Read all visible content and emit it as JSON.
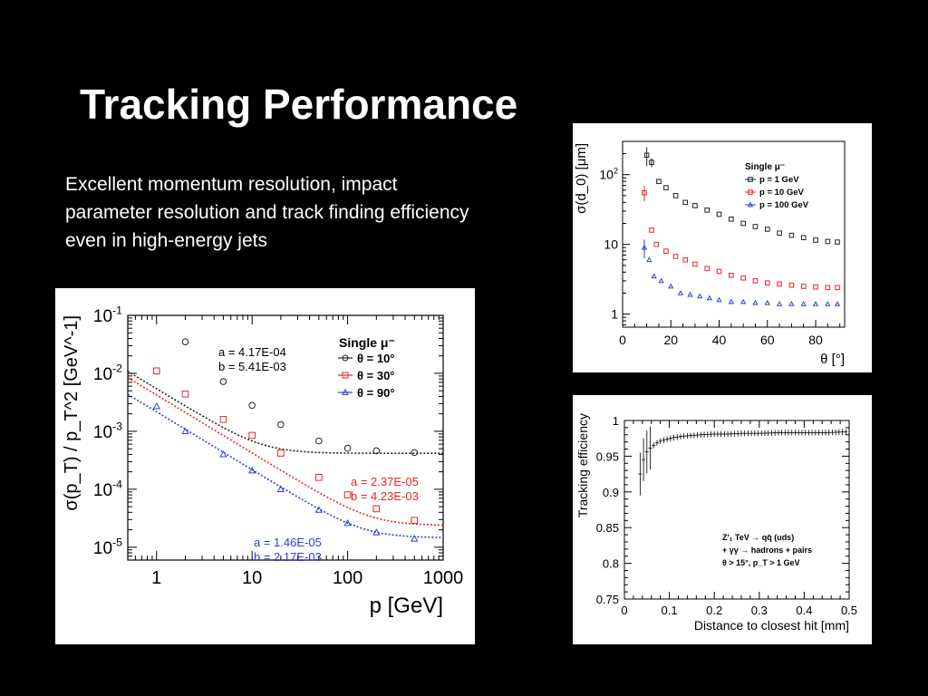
{
  "slide": {
    "title": "Tracking Performance",
    "body": "Excellent momentum resolution, impact parameter resolution and track finding efficiency even in high-energy jets"
  },
  "chart_data": [
    {
      "id": "momentum",
      "type": "scatter",
      "log_x": true,
      "log_y": true,
      "xlim": [
        0.5,
        1000
      ],
      "ylim": [
        6e-06,
        0.1
      ],
      "xlabel": "p [GeV]",
      "ylabel": "σ(p_T) / p_T^2 [GeV^-1]",
      "x_ticks": [
        {
          "v": 1,
          "label": "1"
        },
        {
          "v": 10,
          "label": "10"
        },
        {
          "v": 100,
          "label": "100"
        },
        {
          "v": 1000,
          "label": "1000"
        }
      ],
      "y_ticks": [
        {
          "v": 0.1,
          "base": "10",
          "exp": "-1"
        },
        {
          "v": 0.01,
          "base": "10",
          "exp": "-2"
        },
        {
          "v": 0.001,
          "base": "10",
          "exp": "-3"
        },
        {
          "v": 0.0001,
          "base": "10",
          "exp": "-4"
        },
        {
          "v": 1e-05,
          "base": "10",
          "exp": "-5"
        }
      ],
      "legend_title": "Single μ⁻",
      "legend_position": "top-right",
      "series": [
        {
          "name": "θ = 10°",
          "color": "#222222",
          "marker": "circle",
          "x": [
            2,
            5,
            10,
            20,
            50,
            100,
            200,
            500
          ],
          "y": [
            0.035,
            0.0072,
            0.0028,
            0.0013,
            0.00068,
            0.00051,
            0.00046,
            0.00043
          ],
          "fit": {
            "a": 0.000417,
            "b": 0.00541
          },
          "annotation": [
            "a = 4.17E-04",
            "b = 5.41E-03"
          ]
        },
        {
          "name": "θ = 30°",
          "color": "#e8262a",
          "marker": "square",
          "x": [
            1,
            2,
            5,
            10,
            20,
            50,
            100,
            200,
            500
          ],
          "y": [
            0.011,
            0.0044,
            0.0016,
            0.00085,
            0.00042,
            0.00016,
            8e-05,
            4.6e-05,
            2.9e-05
          ],
          "fit": {
            "a": 2.37e-05,
            "b": 0.00423
          },
          "annotation": [
            "a = 2.37E-05",
            "b = 4.23E-03"
          ]
        },
        {
          "name": "θ = 90°",
          "color": "#2b3fd6",
          "marker": "triangle",
          "x": [
            1,
            2,
            5,
            10,
            20,
            50,
            100,
            200,
            500
          ],
          "y": [
            0.0027,
            0.001,
            0.0004,
            0.00021,
            0.0001,
            4.4e-05,
            2.6e-05,
            1.8e-05,
            1.4e-05
          ],
          "fit": {
            "a": 1.46e-05,
            "b": 0.00217
          },
          "annotation": [
            "a = 1.46E-05",
            "b = 2.17E-03"
          ]
        }
      ]
    },
    {
      "id": "impact",
      "type": "scatter",
      "log_y": true,
      "xlim": [
        0,
        92
      ],
      "ylim": [
        0.65,
        300
      ],
      "xlabel": "θ [°]",
      "ylabel": "σ(d_0) [μm]",
      "x_ticks": [
        {
          "v": 0,
          "label": "0"
        },
        {
          "v": 20,
          "label": "20"
        },
        {
          "v": 40,
          "label": "40"
        },
        {
          "v": 60,
          "label": "60"
        },
        {
          "v": 80,
          "label": "80"
        }
      ],
      "y_ticks": [
        {
          "v": 100,
          "base": "10",
          "exp": "2"
        },
        {
          "v": 10,
          "base": "10",
          "exp": ""
        },
        {
          "v": 1,
          "base": "1",
          "exp": ""
        }
      ],
      "legend_title": "Single μ⁻",
      "legend_position": "top-right",
      "series": [
        {
          "name": "p = 1 GeV",
          "color": "#222222",
          "marker": "square",
          "x": [
            10,
            12,
            15,
            18,
            22,
            26,
            30,
            35,
            40,
            45,
            50,
            55,
            60,
            65,
            70,
            75,
            80,
            85,
            89
          ],
          "y": [
            190,
            150,
            80,
            65,
            50,
            40,
            36,
            31,
            27,
            23,
            20,
            18,
            16.5,
            14.5,
            13.5,
            12.5,
            11.5,
            11,
            10.8
          ],
          "y_err": [
            0.3,
            0.15,
            0,
            0,
            0,
            0,
            0,
            0,
            0,
            0,
            0,
            0,
            0,
            0,
            0,
            0,
            0,
            0,
            0
          ]
        },
        {
          "name": "p = 10 GeV",
          "color": "#e8262a",
          "marker": "square",
          "x": [
            9,
            12,
            14,
            18,
            22,
            26,
            30,
            35,
            40,
            45,
            50,
            55,
            60,
            65,
            70,
            75,
            80,
            85,
            89
          ],
          "y": [
            55,
            16,
            10,
            8,
            6.7,
            6,
            5.2,
            4.5,
            4.1,
            3.6,
            3.3,
            3,
            2.8,
            2.7,
            2.6,
            2.5,
            2.45,
            2.4,
            2.4
          ],
          "y_err": [
            0.25,
            0,
            0,
            0,
            0,
            0,
            0,
            0,
            0,
            0,
            0,
            0,
            0,
            0,
            0,
            0,
            0,
            0,
            0
          ]
        },
        {
          "name": "p = 100 GeV",
          "color": "#2b3fd6",
          "marker": "triangle",
          "x": [
            9,
            11,
            13,
            16,
            20,
            24,
            28,
            32,
            36,
            40,
            45,
            50,
            55,
            60,
            65,
            70,
            75,
            80,
            85,
            89
          ],
          "y": [
            9,
            6,
            3.5,
            3,
            2.5,
            2,
            1.9,
            1.8,
            1.7,
            1.6,
            1.5,
            1.5,
            1.45,
            1.45,
            1.4,
            1.4,
            1.4,
            1.4,
            1.4,
            1.4
          ],
          "y_err": [
            0.3,
            0,
            0,
            0,
            0,
            0,
            0,
            0,
            0,
            0,
            0,
            0,
            0,
            0,
            0,
            0,
            0,
            0,
            0,
            0
          ]
        }
      ]
    },
    {
      "id": "efficiency",
      "type": "line",
      "xlim": [
        0,
        0.5
      ],
      "ylim": [
        0.75,
        1.0
      ],
      "xlabel": "Distance to closest hit [mm]",
      "ylabel": "Tracking efficiency",
      "x_ticks": [
        "0",
        "0.1",
        "0.2",
        "0.3",
        "0.4",
        "0.5"
      ],
      "x_tick_values": [
        0,
        0.1,
        0.2,
        0.3,
        0.4,
        0.5
      ],
      "y_ticks": [
        "0.75",
        "0.8",
        "0.85",
        "0.9",
        "0.95",
        "1"
      ],
      "y_tick_values": [
        0.75,
        0.8,
        0.85,
        0.9,
        0.95,
        1.0
      ],
      "legend_position": "bottom-right",
      "legend": [
        "Z'₁ TeV → qq̄ (uds)",
        "+ γγ → hadrons + pairs",
        "θ > 15°, p_T > 1 GeV"
      ],
      "series": [
        {
          "name": "θ > 15°, p_T > 1 GeV",
          "color": "#000000",
          "x": [
            0.035,
            0.045,
            0.055,
            0.065,
            0.075,
            0.09,
            0.11,
            0.13,
            0.15,
            0.17,
            0.2,
            0.23,
            0.26,
            0.3,
            0.35,
            0.4,
            0.45,
            0.49
          ],
          "y": [
            0.925,
            0.952,
            0.96,
            0.965,
            0.97,
            0.973,
            0.976,
            0.978,
            0.979,
            0.98,
            0.981,
            0.981,
            0.982,
            0.982,
            0.983,
            0.983,
            0.983,
            0.984
          ]
        }
      ]
    }
  ]
}
